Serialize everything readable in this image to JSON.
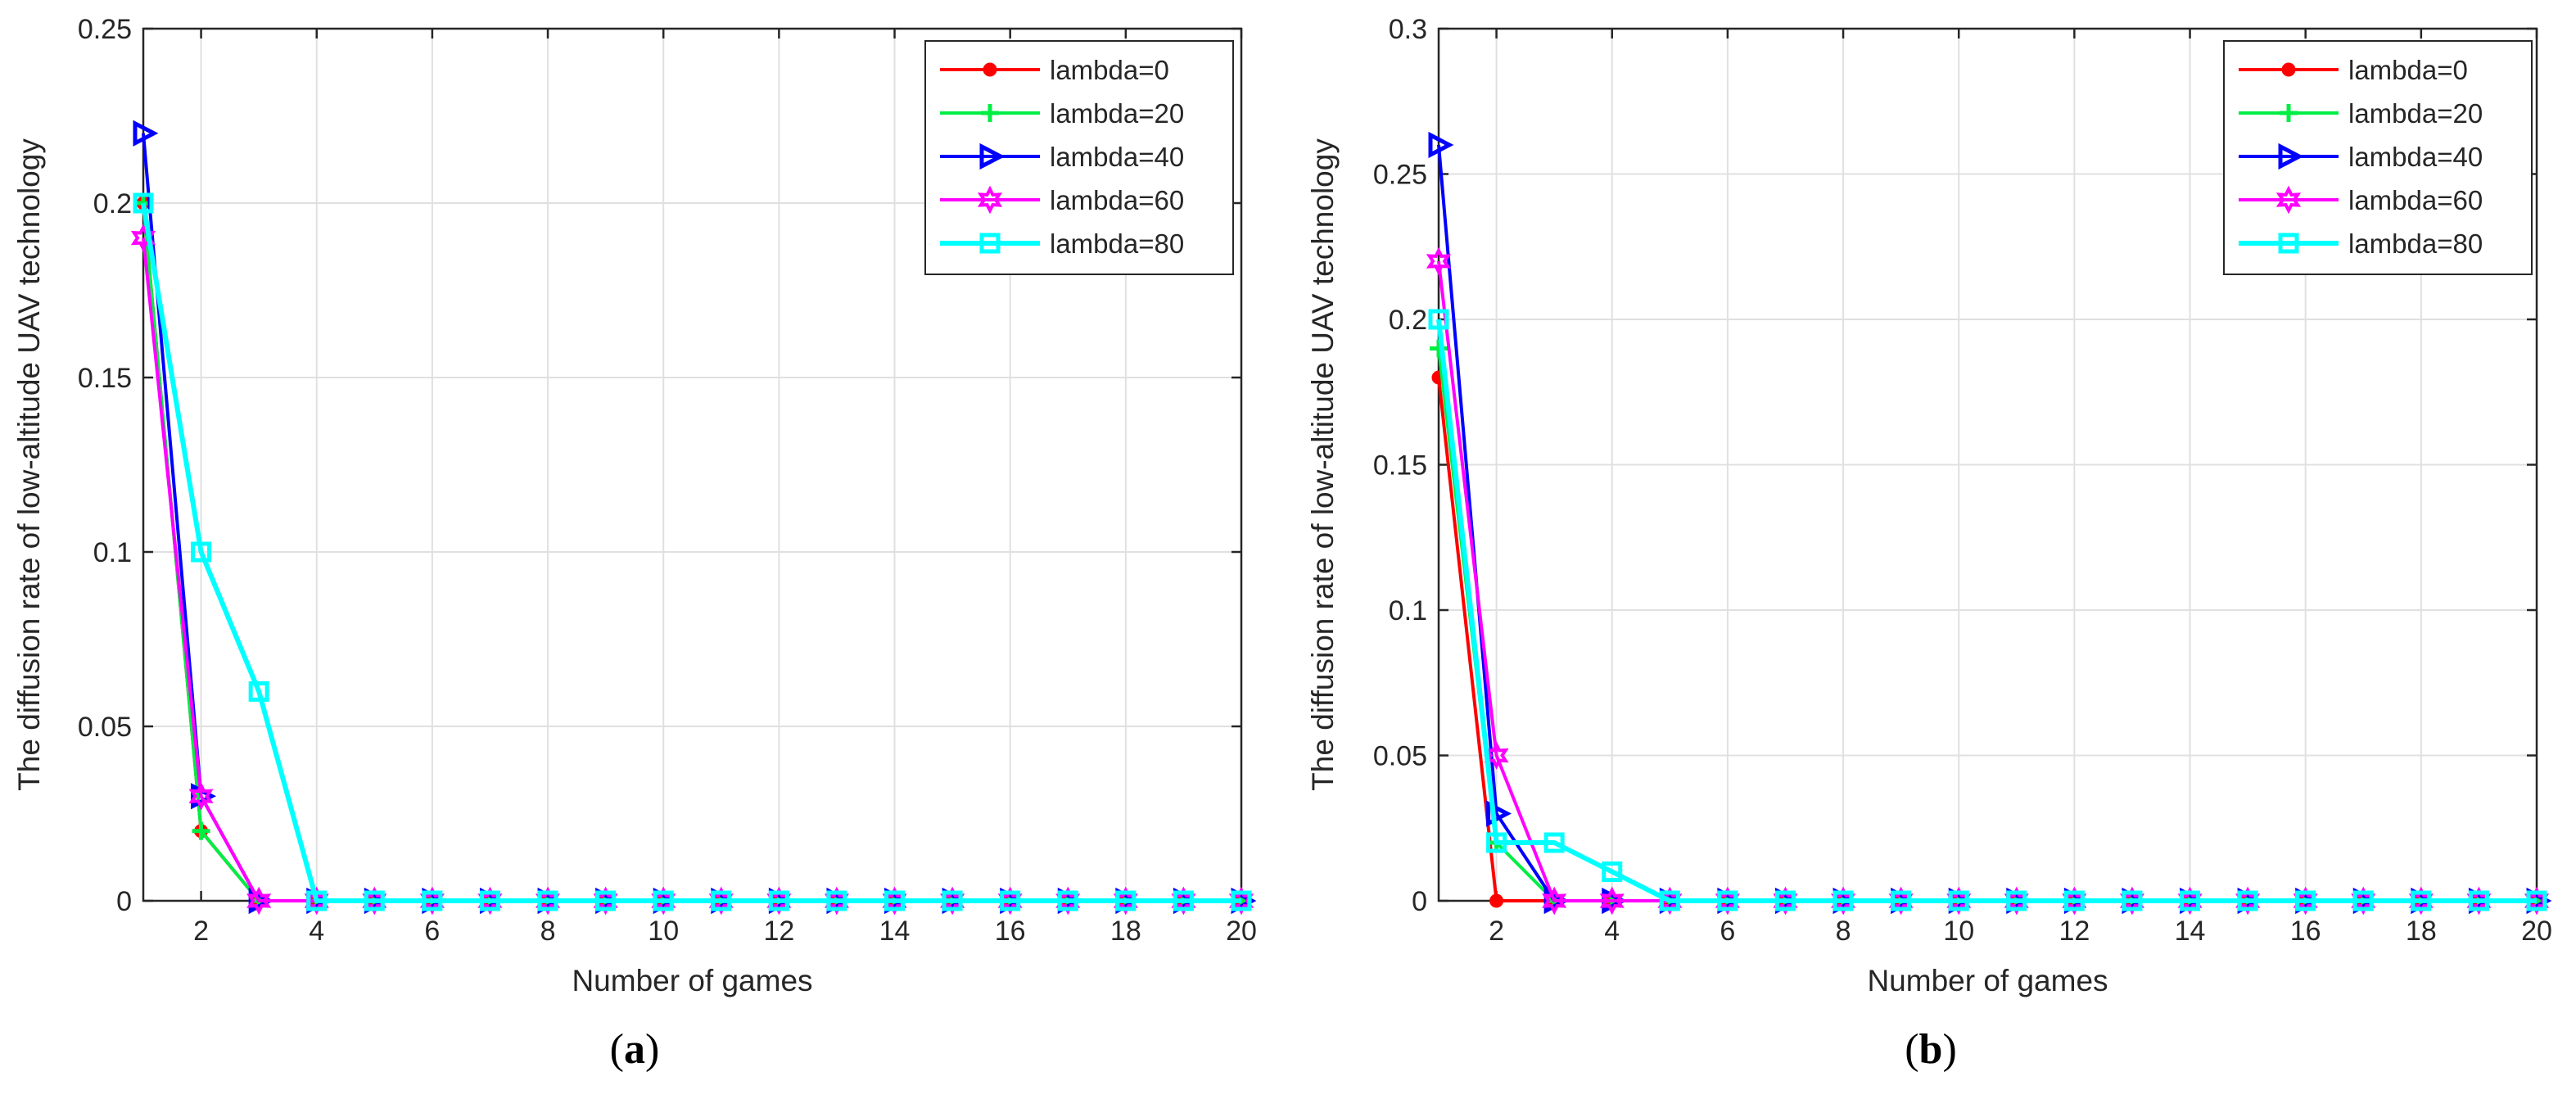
{
  "colors": {
    "background": "#ffffff",
    "axis": "#262626",
    "grid": "#e0e0e0",
    "text": "#262626"
  },
  "chart_data": [
    {
      "type": "line",
      "panel_label": "a",
      "xlabel": "Number of games",
      "ylabel": "The diffusion rate of low-altitude UAV technology",
      "xlim": [
        1,
        20
      ],
      "ylim": [
        0,
        0.25
      ],
      "xticks": [
        2,
        4,
        6,
        8,
        10,
        12,
        14,
        16,
        18,
        20
      ],
      "yticks": [
        0,
        0.05,
        0.1,
        0.15,
        0.2,
        0.25
      ],
      "ytick_labels": [
        "0",
        "0.05",
        "0.1",
        "0.15",
        "0.2",
        "0.25"
      ],
      "grid": true,
      "legend_position": "top-right",
      "x": [
        1,
        2,
        3,
        4,
        5,
        6,
        7,
        8,
        9,
        10,
        11,
        12,
        13,
        14,
        15,
        16,
        17,
        18,
        19,
        20
      ],
      "series": [
        {
          "name": "lambda=0",
          "color": "#ff0000",
          "marker": "dot",
          "values": [
            0.2,
            0.02,
            0,
            0,
            0,
            0,
            0,
            0,
            0,
            0,
            0,
            0,
            0,
            0,
            0,
            0,
            0,
            0,
            0,
            0
          ]
        },
        {
          "name": "lambda=20",
          "color": "#00ee44",
          "marker": "plus",
          "values": [
            0.2,
            0.02,
            0,
            0,
            0,
            0,
            0,
            0,
            0,
            0,
            0,
            0,
            0,
            0,
            0,
            0,
            0,
            0,
            0,
            0
          ]
        },
        {
          "name": "lambda=40",
          "color": "#0000ff",
          "marker": "triangle-right",
          "values": [
            0.22,
            0.03,
            0,
            0,
            0,
            0,
            0,
            0,
            0,
            0,
            0,
            0,
            0,
            0,
            0,
            0,
            0,
            0,
            0,
            0
          ]
        },
        {
          "name": "lambda=60",
          "color": "#ff00ff",
          "marker": "hexagram",
          "values": [
            0.19,
            0.03,
            0,
            0,
            0,
            0,
            0,
            0,
            0,
            0,
            0,
            0,
            0,
            0,
            0,
            0,
            0,
            0,
            0,
            0
          ]
        },
        {
          "name": "lambda=80",
          "color": "#00ffff",
          "marker": "square",
          "values": [
            0.2,
            0.1,
            0.06,
            0,
            0,
            0,
            0,
            0,
            0,
            0,
            0,
            0,
            0,
            0,
            0,
            0,
            0,
            0,
            0,
            0
          ]
        }
      ]
    },
    {
      "type": "line",
      "panel_label": "b",
      "xlabel": "Number of games",
      "ylabel": "The diffusion rate of low-altitude UAV technology",
      "xlim": [
        1,
        20
      ],
      "ylim": [
        0,
        0.3
      ],
      "xticks": [
        2,
        4,
        6,
        8,
        10,
        12,
        14,
        16,
        18,
        20
      ],
      "yticks": [
        0,
        0.05,
        0.1,
        0.15,
        0.2,
        0.25,
        0.3
      ],
      "ytick_labels": [
        "0",
        "0.05",
        "0.1",
        "0.15",
        "0.2",
        "0.25",
        "0.3"
      ],
      "grid": true,
      "legend_position": "top-right",
      "x": [
        1,
        2,
        3,
        4,
        5,
        6,
        7,
        8,
        9,
        10,
        11,
        12,
        13,
        14,
        15,
        16,
        17,
        18,
        19,
        20
      ],
      "series": [
        {
          "name": "lambda=0",
          "color": "#ff0000",
          "marker": "dot",
          "values": [
            0.18,
            0,
            0,
            0,
            0,
            0,
            0,
            0,
            0,
            0,
            0,
            0,
            0,
            0,
            0,
            0,
            0,
            0,
            0,
            0
          ]
        },
        {
          "name": "lambda=20",
          "color": "#00ee44",
          "marker": "plus",
          "values": [
            0.19,
            0.02,
            0,
            0,
            0,
            0,
            0,
            0,
            0,
            0,
            0,
            0,
            0,
            0,
            0,
            0,
            0,
            0,
            0,
            0
          ]
        },
        {
          "name": "lambda=40",
          "color": "#0000ff",
          "marker": "triangle-right",
          "values": [
            0.26,
            0.03,
            0,
            0,
            0,
            0,
            0,
            0,
            0,
            0,
            0,
            0,
            0,
            0,
            0,
            0,
            0,
            0,
            0,
            0
          ]
        },
        {
          "name": "lambda=60",
          "color": "#ff00ff",
          "marker": "hexagram",
          "values": [
            0.22,
            0.05,
            0,
            0,
            0,
            0,
            0,
            0,
            0,
            0,
            0,
            0,
            0,
            0,
            0,
            0,
            0,
            0,
            0,
            0
          ]
        },
        {
          "name": "lambda=80",
          "color": "#00ffff",
          "marker": "square",
          "values": [
            0.2,
            0.02,
            0.02,
            0.01,
            0,
            0,
            0,
            0,
            0,
            0,
            0,
            0,
            0,
            0,
            0,
            0,
            0,
            0,
            0,
            0
          ]
        }
      ]
    }
  ]
}
